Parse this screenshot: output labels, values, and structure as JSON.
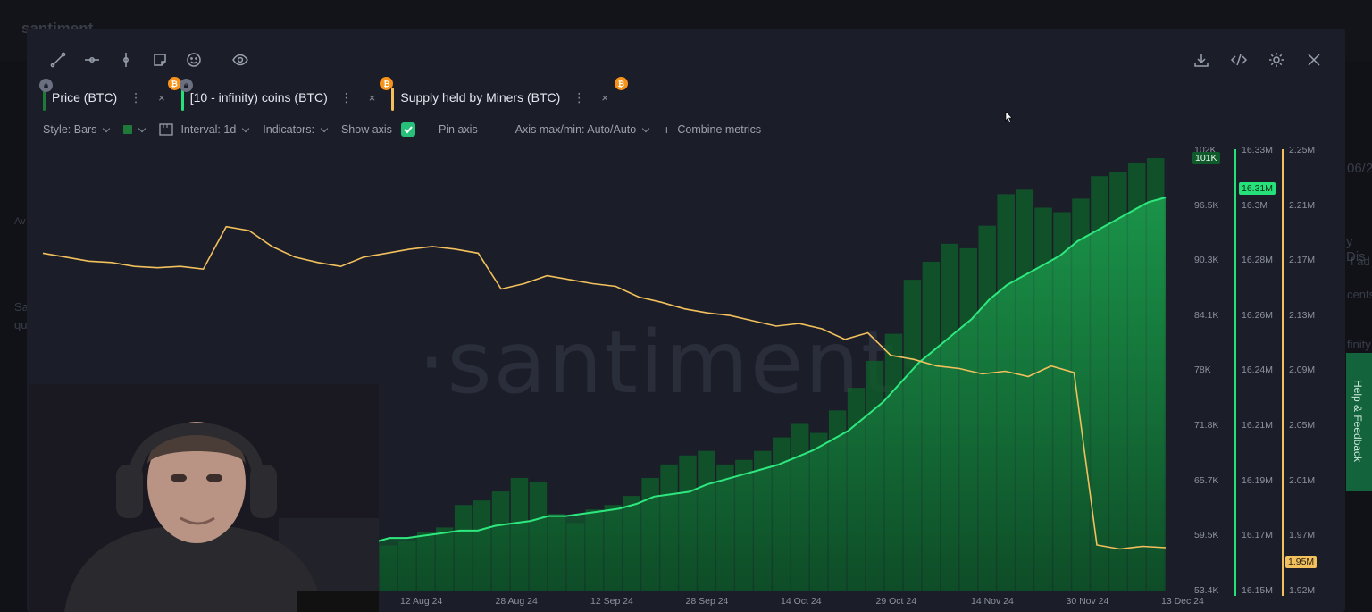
{
  "background": {
    "logo": "santiment",
    "nav_fragments": [
      "06/2",
      "y Dis",
      "f ad",
      "cents",
      "finity",
      "Av",
      "Sa",
      "qu"
    ],
    "feedback_label": "Help & Feedback"
  },
  "toolbar": {
    "left_icons": [
      "line-tool-icon",
      "horizontal-ray-icon",
      "vertical-line-icon",
      "note-icon",
      "emoji-icon",
      "eye-icon"
    ],
    "right_icons": [
      "download-icon",
      "embed-code-icon",
      "settings-icon",
      "close-icon"
    ]
  },
  "metrics": [
    {
      "label": "Price (BTC)",
      "color": "#1f7a3a",
      "locked": true,
      "btc": false
    },
    {
      "label": "[10 - infinity) coins (BTC)",
      "color": "#26e07a",
      "locked": true,
      "btc": true
    },
    {
      "label": "Supply held by Miners (BTC)",
      "color": "#f2c05c",
      "locked": false,
      "btc": true
    }
  ],
  "metric_menu_glyph": "⋮",
  "metric_close_glyph": "×",
  "btc_glyph": "₿",
  "controls": {
    "style": "Style: Bars",
    "interval": "Interval: 1d",
    "indicators": "Indicators:",
    "show_axis": "Show axis",
    "show_axis_checked": true,
    "pin_axis": "Pin axis",
    "axis_maxmin": "Axis max/min: Auto/Auto",
    "combine": "Combine metrics"
  },
  "watermark": "·santiment·",
  "chart_data": {
    "type": "bar",
    "x_ticks": [
      "12 Aug 24",
      "28 Aug 24",
      "12 Sep 24",
      "28 Sep 24",
      "14 Oct 24",
      "29 Oct 24",
      "14 Nov 24",
      "30 Nov 24",
      "13 Dec 24"
    ],
    "price_axis": [
      "102K",
      "96.5K",
      "90.3K",
      "84.1K",
      "78K",
      "71.8K",
      "65.7K",
      "59.5K",
      "53.4K"
    ],
    "whale_axis": [
      "16.33M",
      "16.3M",
      "16.28M",
      "16.26M",
      "16.24M",
      "16.21M",
      "16.19M",
      "16.17M",
      "16.15M"
    ],
    "miner_axis": [
      "2.25M",
      "2.21M",
      "2.17M",
      "2.13M",
      "2.09M",
      "2.05M",
      "2.01M",
      "1.97M",
      "1.92M"
    ],
    "price_current": "101K",
    "whale_current": "16.31M",
    "miner_current": "1.95M",
    "series": [
      {
        "name": "Price (BTC)",
        "kind": "bars",
        "color": "#1f7a3a",
        "values": [
          58000,
          59500,
          57500,
          60500,
          61000,
          63500,
          64000,
          61000,
          60000,
          58500,
          59000,
          57000,
          58500,
          60500,
          61500,
          62000,
          60000,
          56000,
          58500,
          59000,
          60000,
          60500,
          63000,
          63500,
          64500,
          66000,
          65500,
          62000,
          61000,
          62500,
          63000,
          64000,
          66000,
          67500,
          68500,
          69000,
          67500,
          68000,
          69000,
          70500,
          72000,
          71000,
          73500,
          76000,
          79000,
          82000,
          88000,
          90000,
          92000,
          91500,
          94000,
          97500,
          98000,
          96000,
          95500,
          97000,
          99500,
          100000,
          101000,
          101500
        ]
      },
      {
        "name": "[10 - infinity) coins (BTC)",
        "kind": "line",
        "color": "#26e07a",
        "fill": true,
        "values": [
          16.164,
          16.166,
          16.167,
          16.166,
          16.168,
          16.167,
          16.169,
          16.17,
          16.172,
          16.172,
          16.173,
          16.174,
          16.175,
          16.175,
          16.177,
          16.178,
          16.179,
          16.181,
          16.181,
          16.182,
          16.183,
          16.184,
          16.186,
          16.189,
          16.19,
          16.191,
          16.194,
          16.196,
          16.198,
          16.2,
          16.202,
          16.205,
          16.208,
          16.212,
          16.216,
          16.222,
          16.228,
          16.236,
          16.244,
          16.25,
          16.256,
          16.262,
          16.27,
          16.276,
          16.28,
          16.284,
          16.288,
          16.294,
          16.298,
          16.302,
          16.306,
          16.31,
          16.312
        ]
      },
      {
        "name": "Supply held by Miners (BTC)",
        "kind": "line",
        "color": "#f2c05c",
        "values": [
          2.175,
          2.172,
          2.169,
          2.168,
          2.165,
          2.164,
          2.165,
          2.163,
          2.195,
          2.192,
          2.18,
          2.172,
          2.168,
          2.165,
          2.172,
          2.175,
          2.178,
          2.18,
          2.178,
          2.175,
          2.148,
          2.152,
          2.158,
          2.155,
          2.152,
          2.15,
          2.142,
          2.138,
          2.133,
          2.13,
          2.128,
          2.124,
          2.12,
          2.122,
          2.118,
          2.11,
          2.115,
          2.098,
          2.095,
          2.09,
          2.088,
          2.084,
          2.086,
          2.082,
          2.09,
          2.085,
          1.955,
          1.952,
          1.954,
          1.953
        ]
      }
    ]
  },
  "webcam": {
    "description_icon": "webcam-person"
  }
}
